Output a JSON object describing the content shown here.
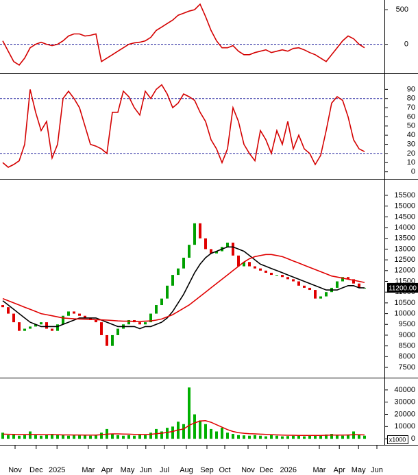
{
  "chart_data": [
    {
      "type": "line",
      "xlim": [
        -0.5,
        69.5
      ],
      "ylim": [
        -410,
        640
      ],
      "yticks": [
        0,
        500
      ],
      "hlines": [
        0
      ],
      "hline_color": "#1a1a9a",
      "series": [
        {
          "color": "#d40000",
          "values": [
            50,
            -100,
            -250,
            -300,
            -200,
            -50,
            0,
            30,
            0,
            -20,
            0,
            50,
            120,
            150,
            150,
            120,
            130,
            150,
            -250,
            -200,
            -150,
            -100,
            -50,
            0,
            20,
            30,
            50,
            100,
            200,
            250,
            300,
            350,
            420,
            450,
            480,
            500,
            580,
            400,
            200,
            50,
            -50,
            -50,
            -20,
            -100,
            -150,
            -150,
            -120,
            -100,
            -80,
            -120,
            -100,
            -80,
            -100,
            -60,
            -50,
            -80,
            -120,
            -150,
            -200,
            -250,
            -150,
            -50,
            50,
            120,
            80,
            0,
            -50
          ]
        }
      ]
    },
    {
      "type": "line",
      "xlim": [
        -0.5,
        69.5
      ],
      "ylim": [
        -7,
        106
      ],
      "yticks": [
        0,
        10,
        20,
        30,
        40,
        50,
        60,
        70,
        80,
        90
      ],
      "hlines": [
        20,
        80
      ],
      "hline_color": "#1a1a9a",
      "series": [
        {
          "color": "#d40000",
          "values": [
            10,
            5,
            8,
            12,
            30,
            90,
            65,
            45,
            55,
            15,
            30,
            80,
            88,
            80,
            70,
            50,
            30,
            28,
            25,
            20,
            65,
            65,
            88,
            82,
            70,
            62,
            88,
            80,
            90,
            95,
            85,
            70,
            75,
            85,
            82,
            78,
            65,
            55,
            35,
            25,
            10,
            25,
            70,
            55,
            30,
            20,
            12,
            45,
            35,
            20,
            45,
            30,
            55,
            25,
            40,
            25,
            20,
            8,
            18,
            45,
            75,
            82,
            78,
            60,
            35,
            25,
            22
          ]
        }
      ]
    },
    {
      "type": "candlestick",
      "xlim": [
        -0.5,
        69.5
      ],
      "ylim": [
        7055,
        16200
      ],
      "yticks": [
        7500,
        8000,
        8500,
        9000,
        9500,
        10000,
        10500,
        11000,
        11500,
        12000,
        12500,
        13000,
        13500,
        14000,
        14500,
        15000,
        15500
      ],
      "color_up": "#00a000",
      "color_down": "#e00000",
      "open": [
        10400,
        10300,
        10000,
        9600,
        9200,
        9300,
        9400,
        9500,
        9600,
        9300,
        9200,
        9500,
        9900,
        10100,
        10000,
        9900,
        9800,
        9700,
        9600,
        9000,
        8500,
        9000,
        9300,
        9500,
        9700,
        9600,
        9500,
        9600,
        10000,
        10400,
        10700,
        11300,
        11800,
        12100,
        12600,
        13200,
        14200,
        13500,
        13000,
        12800,
        12900,
        13100,
        13300,
        12700,
        12200,
        12400,
        12200,
        12100,
        12000,
        11900,
        11800,
        11800,
        11700,
        11600,
        11500,
        11300,
        11200,
        11100,
        10700,
        10800,
        11000,
        11200,
        11500,
        11700,
        11600,
        11400,
        11200
      ],
      "close": [
        10300,
        10000,
        9600,
        9200,
        9300,
        9400,
        9500,
        9600,
        9300,
        9200,
        9500,
        9900,
        10100,
        10000,
        9900,
        9800,
        9700,
        9600,
        9000,
        8500,
        9000,
        9300,
        9500,
        9700,
        9600,
        9500,
        9600,
        10000,
        10400,
        10700,
        11300,
        11800,
        12100,
        12600,
        13200,
        14200,
        13500,
        13000,
        12800,
        12900,
        13100,
        13300,
        12700,
        12200,
        12400,
        12200,
        12100,
        12000,
        11900,
        11800,
        11800,
        11700,
        11600,
        11500,
        11300,
        11200,
        11100,
        10700,
        10800,
        11000,
        11200,
        11500,
        11700,
        11600,
        11400,
        11200,
        11200
      ],
      "series": [
        {
          "color": "#000000",
          "values": [
            10600,
            10400,
            10200,
            10000,
            9800,
            9600,
            9500,
            9400,
            9400,
            9400,
            9400,
            9500,
            9600,
            9700,
            9800,
            9800,
            9800,
            9800,
            9700,
            9600,
            9500,
            9400,
            9400,
            9400,
            9400,
            9300,
            9400,
            9400,
            9500,
            9600,
            9800,
            10100,
            10500,
            10900,
            11400,
            11900,
            12300,
            12600,
            12800,
            12900,
            13000,
            13100,
            13100,
            13000,
            12900,
            12700,
            12500,
            12300,
            12200,
            12100,
            12000,
            11900,
            11800,
            11700,
            11600,
            11500,
            11400,
            11300,
            11200,
            11100,
            11100,
            11100,
            11200,
            11300,
            11300,
            11200,
            11200
          ]
        },
        {
          "color": "#e00000",
          "values": [
            10700,
            10600,
            10500,
            10400,
            10300,
            10200,
            10100,
            10000,
            9950,
            9900,
            9850,
            9800,
            9780,
            9760,
            9750,
            9740,
            9730,
            9720,
            9710,
            9700,
            9680,
            9660,
            9650,
            9650,
            9640,
            9640,
            9650,
            9660,
            9700,
            9750,
            9850,
            9950,
            10100,
            10250,
            10400,
            10600,
            10800,
            11000,
            11200,
            11400,
            11600,
            11800,
            12000,
            12200,
            12400,
            12550,
            12650,
            12700,
            12750,
            12750,
            12700,
            12650,
            12550,
            12450,
            12350,
            12250,
            12150,
            12050,
            11950,
            11850,
            11750,
            11700,
            11650,
            11600,
            11550,
            11500,
            11450
          ]
        }
      ],
      "last_price": {
        "value": 11200,
        "label": "11200.00"
      }
    },
    {
      "type": "bar",
      "xlim": [
        -0.5,
        69.5
      ],
      "ylim": [
        -4400,
        48900
      ],
      "yticks": [
        0,
        10000,
        20000,
        30000,
        40000
      ],
      "color": "#00b000",
      "unit_label": "x1000",
      "values": [
        5000,
        3000,
        4000,
        2500,
        3000,
        6000,
        3000,
        2500,
        3000,
        4000,
        3500,
        3000,
        2500,
        3000,
        2800,
        3000,
        2500,
        3000,
        5000,
        8000,
        4000,
        3000,
        2500,
        3000,
        2500,
        3500,
        3000,
        5000,
        8000,
        6000,
        9000,
        10000,
        14000,
        12000,
        42000,
        20000,
        15000,
        12000,
        8000,
        6000,
        9000,
        5000,
        4000,
        3000,
        2800,
        2500,
        3000,
        2500,
        2000,
        3000,
        2500,
        2000,
        2200,
        2500,
        3000,
        2000,
        2500,
        3000,
        2800,
        3500,
        4000,
        3000,
        2500,
        3500,
        6000,
        3000,
        2500
      ],
      "series": [
        {
          "color": "#e00000",
          "values": [
            3800,
            3700,
            3600,
            3500,
            3500,
            3500,
            3500,
            3400,
            3300,
            3300,
            3300,
            3200,
            3200,
            3100,
            3100,
            3000,
            3000,
            3000,
            3300,
            3800,
            4000,
            4000,
            3900,
            3800,
            3600,
            3500,
            3500,
            3700,
            4200,
            4600,
            5200,
            6000,
            7200,
            8000,
            11000,
            13000,
            14500,
            14800,
            13500,
            11500,
            9500,
            7500,
            6000,
            5000,
            4500,
            4200,
            4000,
            3800,
            3600,
            3400,
            3200,
            3000,
            2900,
            2900,
            2800,
            2800,
            2700,
            2700,
            2800,
            2900,
            3000,
            3000,
            3000,
            3100,
            3300,
            3300,
            3200
          ]
        }
      ],
      "xticks": [
        {
          "value": 2.25,
          "label": "Nov"
        },
        {
          "value": 6.1,
          "label": "Dec"
        },
        {
          "value": 9.9,
          "label": "2025"
        },
        {
          "value": 15.6,
          "label": "Mar"
        },
        {
          "value": 19,
          "label": "Apr"
        },
        {
          "value": 22.75,
          "label": "May"
        },
        {
          "value": 26.1,
          "label": "Jun"
        },
        {
          "value": 29.5,
          "label": "Jul"
        },
        {
          "value": 33.5,
          "label": "Aug"
        },
        {
          "value": 37.25,
          "label": "Sep"
        },
        {
          "value": 40.5,
          "label": "Oct"
        },
        {
          "value": 44.75,
          "label": "Nov"
        },
        {
          "value": 48.1,
          "label": "Dec"
        },
        {
          "value": 52.1,
          "label": "2026"
        },
        {
          "value": 57.75,
          "label": "Mar"
        },
        {
          "value": 61.4,
          "label": "Apr"
        },
        {
          "value": 64.9,
          "label": "May"
        },
        {
          "value": 68.25,
          "label": "Jun"
        }
      ]
    }
  ]
}
